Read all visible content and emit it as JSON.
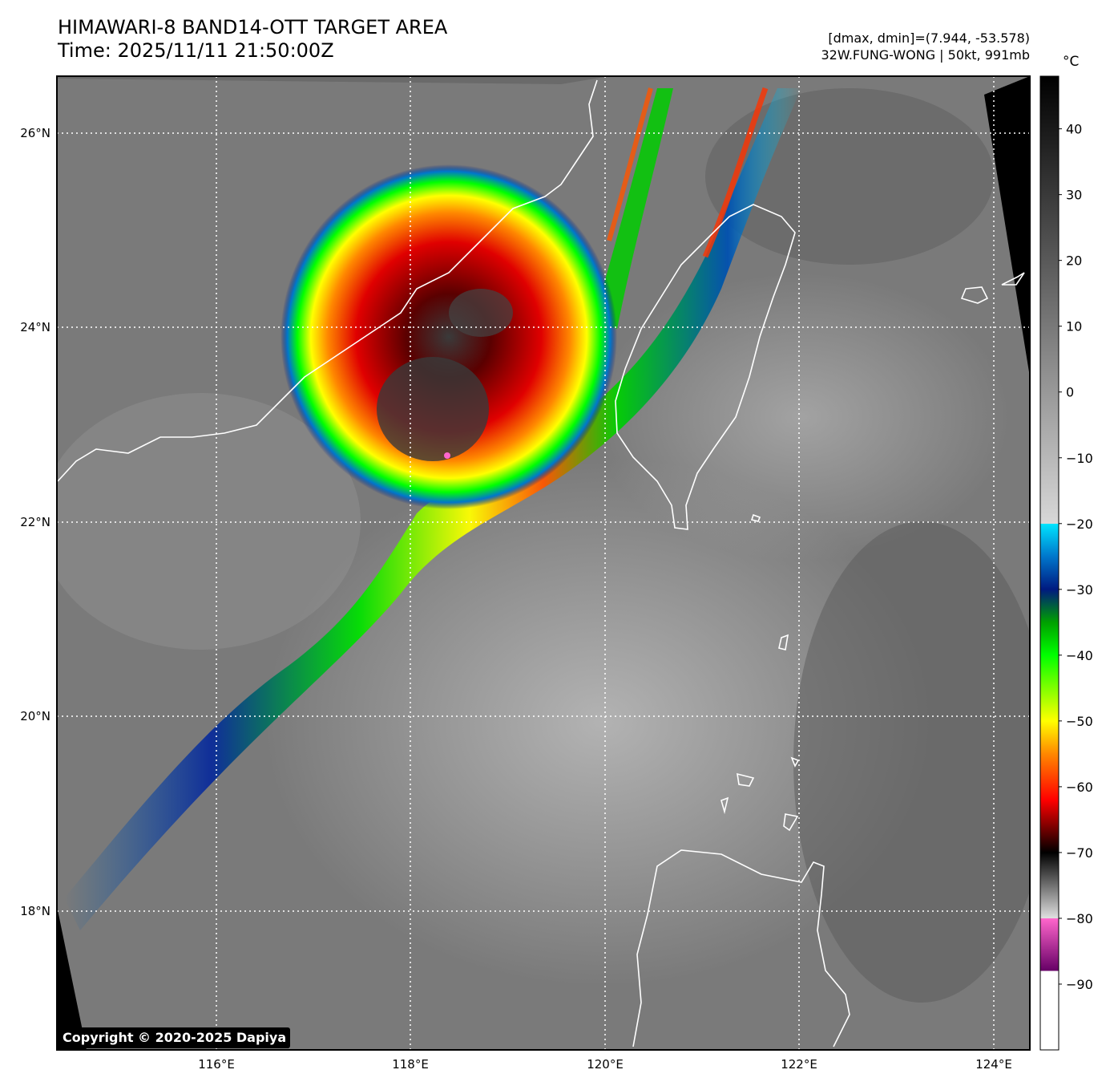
{
  "header": {
    "title_line1": "HIMAWARI-8 BAND14-OTT TARGET AREA",
    "title_line2": "Time: 2025/11/11 21:50:00Z",
    "dmax_dmin": "[dmax, dmin]=(7.944, -53.578)",
    "storm_info": "32W.FUNG-WONG | 50kt, 991mb"
  },
  "map": {
    "lat_labels": [
      "26°N",
      "24°N",
      "22°N",
      "20°N",
      "18°N"
    ],
    "lon_labels": [
      "116°E",
      "118°E",
      "120°E",
      "122°E",
      "124°E"
    ],
    "colors": {
      "background_gray": "#7a7a7a",
      "coastline": "#ffffff",
      "gridline": "#ffffff"
    }
  },
  "colorbar": {
    "unit": "°C",
    "ticks": [
      "40",
      "30",
      "20",
      "10",
      "0",
      "−10",
      "−20",
      "−30",
      "−40",
      "−50",
      "−60",
      "−70",
      "−80",
      "−90"
    ],
    "stops": [
      {
        "temp": 48,
        "color": "#000000"
      },
      {
        "temp": -20,
        "color": "#d8d8d8"
      },
      {
        "temp": -20.01,
        "color": "#00e5ff"
      },
      {
        "temp": -25,
        "color": "#0077cc"
      },
      {
        "temp": -30,
        "color": "#001a80"
      },
      {
        "temp": -35,
        "color": "#00a000"
      },
      {
        "temp": -40,
        "color": "#00ff00"
      },
      {
        "temp": -50,
        "color": "#ffff00"
      },
      {
        "temp": -55,
        "color": "#ff8800"
      },
      {
        "temp": -62,
        "color": "#ff0000"
      },
      {
        "temp": -68,
        "color": "#400000"
      },
      {
        "temp": -70,
        "color": "#000000"
      },
      {
        "temp": -80,
        "color": "#e0e0e0"
      },
      {
        "temp": -80.01,
        "color": "#ff66cc"
      },
      {
        "temp": -88,
        "color": "#660066"
      },
      {
        "temp": -88.01,
        "color": "#ffffff"
      },
      {
        "temp": -100,
        "color": "#ffffff"
      }
    ]
  },
  "copyright": "Copyright © 2020-2025 Dapiya"
}
